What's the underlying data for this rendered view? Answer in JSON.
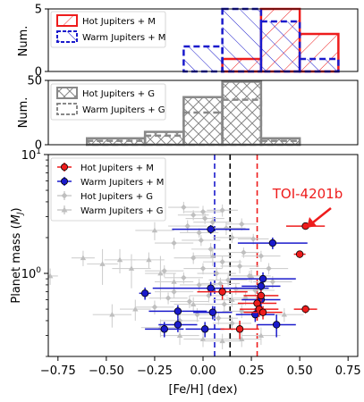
{
  "figure": {
    "xlabel": "[Fe/H] (dex)",
    "x_ticks": [
      "−0.75",
      "−0.50",
      "−0.25",
      "0.00",
      "0.25",
      "0.50",
      "0.75"
    ],
    "annotation": "TOI-4201b"
  },
  "colors": {
    "hot_m": "#ee1c1c",
    "warm_m": "#1a1acc",
    "g_hist": "#888888",
    "g_points": "#bfbfbf"
  },
  "chart_data": [
    {
      "type": "bar",
      "panel": "top histogram (M dwarf hosts)",
      "ylabel": "Num.",
      "ylim": [
        0,
        5
      ],
      "y_ticks": [
        "0",
        "5"
      ],
      "bin_edges": [
        -0.6,
        -0.3,
        -0.1,
        0.1,
        0.3,
        0.5,
        0.7
      ],
      "series": [
        {
          "name": "Hot Jupiters + M",
          "style": "solid red, hatched",
          "values": [
            0,
            0,
            0,
            1,
            5,
            3
          ]
        },
        {
          "name": "Warm Jupiters + M",
          "style": "dashed blue, hatched",
          "values": [
            0,
            0,
            2,
            5,
            4,
            1
          ]
        }
      ],
      "legend": "top-left"
    },
    {
      "type": "bar",
      "panel": "middle histogram (G dwarf hosts)",
      "ylabel": "Num.",
      "ylim": [
        0,
        50
      ],
      "y_ticks": [
        "0",
        "50"
      ],
      "bin_edges": [
        -0.6,
        -0.3,
        -0.1,
        0.1,
        0.3,
        0.5,
        0.7
      ],
      "series": [
        {
          "name": "Hot Jupiters + G",
          "style": "solid gray, cross-hatched",
          "values": [
            5,
            10,
            37,
            49,
            5,
            0
          ]
        },
        {
          "name": "Warm Jupiters + G",
          "style": "dashed gray",
          "values": [
            3,
            7,
            25,
            35,
            3,
            0
          ]
        }
      ],
      "legend": "top-left"
    },
    {
      "type": "scatter",
      "panel": "main scatter",
      "ylabel": "Planet mass (M_J)",
      "ylabel_parts": [
        "Planet mass (",
        "M",
        "J",
        ")"
      ],
      "xlim": [
        -0.8,
        0.8
      ],
      "ylim": [
        0.2,
        10
      ],
      "y_scale": "log",
      "y_ticks": [
        {
          "value": 1,
          "base": "10",
          "exp": "0"
        },
        {
          "value": 10,
          "base": "10",
          "exp": "1"
        }
      ],
      "vlines": [
        {
          "x": 0.06,
          "color": "blue",
          "style": "dashed"
        },
        {
          "x": 0.14,
          "color": "black",
          "style": "dashed"
        },
        {
          "x": 0.28,
          "color": "red",
          "style": "dashed"
        }
      ],
      "legend": "top-left",
      "series": [
        {
          "name": "Hot Jupiters + M",
          "marker": "circle",
          "points": [
            {
              "x": 0.53,
              "y": 2.5,
              "xerr": 0.1,
              "yerr_lo": 0.15,
              "yerr_hi": 0.15,
              "label": "TOI-4201b"
            },
            {
              "x": 0.5,
              "y": 1.45,
              "xerr": 0.03,
              "yerr_lo": 0.1,
              "yerr_hi": 0.1
            },
            {
              "x": 0.3,
              "y": 0.65,
              "xerr": 0.09,
              "yerr_lo": 0.07,
              "yerr_hi": 0.07
            },
            {
              "x": 0.28,
              "y": 0.56,
              "xerr": 0.1,
              "yerr_lo": 0.08,
              "yerr_hi": 0.08
            },
            {
              "x": 0.29,
              "y": 0.5,
              "xerr": 0.1,
              "yerr_lo": 0.07,
              "yerr_hi": 0.07
            },
            {
              "x": 0.31,
              "y": 0.47,
              "xerr": 0.1,
              "yerr_lo": 0.06,
              "yerr_hi": 0.06
            },
            {
              "x": 0.53,
              "y": 0.5,
              "xerr": 0.06,
              "yerr_lo": 0.04,
              "yerr_hi": 0.04
            },
            {
              "x": 0.1,
              "y": 0.7,
              "xerr": 0.13,
              "yerr_lo": 0.1,
              "yerr_hi": 0.1
            },
            {
              "x": 0.19,
              "y": 0.34,
              "xerr": 0.1,
              "yerr_lo": 0.06,
              "yerr_hi": 0.06
            }
          ]
        },
        {
          "name": "Warm Jupiters + M",
          "marker": "circle",
          "points": [
            {
              "x": 0.04,
              "y": 2.35,
              "xerr": 0.2,
              "yerr_lo": 0.2,
              "yerr_hi": 0.2
            },
            {
              "x": 0.36,
              "y": 1.8,
              "xerr": 0.18,
              "yerr_lo": 0.2,
              "yerr_hi": 0.2
            },
            {
              "x": -0.3,
              "y": 0.68,
              "xerr": 0.03,
              "yerr_lo": 0.08,
              "yerr_hi": 0.08
            },
            {
              "x": 0.04,
              "y": 0.75,
              "xerr": 0.3,
              "yerr_lo": 0.1,
              "yerr_hi": 0.1
            },
            {
              "x": 0.31,
              "y": 0.9,
              "xerr": 0.17,
              "yerr_lo": 0.12,
              "yerr_hi": 0.12
            },
            {
              "x": 0.3,
              "y": 0.78,
              "xerr": 0.1,
              "yerr_lo": 0.1,
              "yerr_hi": 0.1
            },
            {
              "x": 0.3,
              "y": 0.6,
              "xerr": 0.1,
              "yerr_lo": 0.08,
              "yerr_hi": 0.08
            },
            {
              "x": -0.13,
              "y": 0.48,
              "xerr": 0.15,
              "yerr_lo": 0.06,
              "yerr_hi": 0.06
            },
            {
              "x": 0.05,
              "y": 0.47,
              "xerr": 0.1,
              "yerr_lo": 0.06,
              "yerr_hi": 0.06
            },
            {
              "x": 0.27,
              "y": 0.45,
              "xerr": 0.1,
              "yerr_lo": 0.06,
              "yerr_hi": 0.06
            },
            {
              "x": -0.13,
              "y": 0.37,
              "xerr": 0.1,
              "yerr_lo": 0.05,
              "yerr_hi": 0.05
            },
            {
              "x": -0.2,
              "y": 0.34,
              "xerr": 0.1,
              "yerr_lo": 0.05,
              "yerr_hi": 0.05
            },
            {
              "x": 0.01,
              "y": 0.34,
              "xerr": 0.1,
              "yerr_lo": 0.05,
              "yerr_hi": 0.05
            },
            {
              "x": 0.38,
              "y": 0.37,
              "xerr": 0.1,
              "yerr_lo": 0.08,
              "yerr_hi": 0.08
            }
          ]
        },
        {
          "name": "Hot Jupiters + G",
          "marker": "diamond",
          "points": [
            {
              "x": -0.1,
              "y": 3.6,
              "xerr": 0.08,
              "yerr_lo": 0.4,
              "yerr_hi": 0.4
            },
            {
              "x": 0.0,
              "y": 3.3,
              "xerr": 0.1,
              "yerr_lo": 0.4,
              "yerr_hi": 0.4
            },
            {
              "x": 0.1,
              "y": 3.4,
              "xerr": 0.08,
              "yerr_lo": 0.4,
              "yerr_hi": 0.4
            },
            {
              "x": -0.05,
              "y": 3.1,
              "xerr": 0.08,
              "yerr_lo": 0.3,
              "yerr_hi": 0.3
            },
            {
              "x": 0.05,
              "y": 2.7,
              "xerr": 0.1,
              "yerr_lo": 0.3,
              "yerr_hi": 0.3
            },
            {
              "x": 0.12,
              "y": 2.4,
              "xerr": 0.1,
              "yerr_lo": 0.3,
              "yerr_hi": 0.3
            },
            {
              "x": 0.2,
              "y": 2.6,
              "xerr": 0.08,
              "yerr_lo": 0.3,
              "yerr_hi": 0.3
            },
            {
              "x": -0.02,
              "y": 2.2,
              "xerr": 0.1,
              "yerr_lo": 0.2,
              "yerr_hi": 0.2
            },
            {
              "x": 0.15,
              "y": 2.0,
              "xerr": 0.1,
              "yerr_lo": 0.2,
              "yerr_hi": 0.2
            },
            {
              "x": 0.26,
              "y": 1.95,
              "xerr": 0.08,
              "yerr_lo": 0.2,
              "yerr_hi": 0.2
            },
            {
              "x": -0.15,
              "y": 1.8,
              "xerr": 0.1,
              "yerr_lo": 0.2,
              "yerr_hi": 0.2
            },
            {
              "x": 0.04,
              "y": 1.6,
              "xerr": 0.1,
              "yerr_lo": 0.2,
              "yerr_hi": 0.2
            },
            {
              "x": 0.21,
              "y": 1.5,
              "xerr": 0.08,
              "yerr_lo": 0.15,
              "yerr_hi": 0.15
            },
            {
              "x": 0.3,
              "y": 1.4,
              "xerr": 0.1,
              "yerr_lo": 0.15,
              "yerr_hi": 0.15
            },
            {
              "x": -0.05,
              "y": 1.35,
              "xerr": 0.1,
              "yerr_lo": 0.15,
              "yerr_hi": 0.15
            },
            {
              "x": 0.1,
              "y": 1.25,
              "xerr": 0.1,
              "yerr_lo": 0.15,
              "yerr_hi": 0.15
            },
            {
              "x": 0.19,
              "y": 1.15,
              "xerr": 0.1,
              "yerr_lo": 0.15,
              "yerr_hi": 0.15
            },
            {
              "x": 0.0,
              "y": 1.1,
              "xerr": 0.1,
              "yerr_lo": 0.12,
              "yerr_hi": 0.12
            },
            {
              "x": -0.2,
              "y": 1.05,
              "xerr": 0.1,
              "yerr_lo": 0.12,
              "yerr_hi": 0.12
            },
            {
              "x": 0.07,
              "y": 1.0,
              "xerr": 0.1,
              "yerr_lo": 0.12,
              "yerr_hi": 0.12
            },
            {
              "x": 0.24,
              "y": 0.95,
              "xerr": 0.1,
              "yerr_lo": 0.1,
              "yerr_hi": 0.1
            },
            {
              "x": -0.1,
              "y": 0.92,
              "xerr": 0.1,
              "yerr_lo": 0.1,
              "yerr_hi": 0.1
            },
            {
              "x": 0.13,
              "y": 0.88,
              "xerr": 0.1,
              "yerr_lo": 0.1,
              "yerr_hi": 0.1
            },
            {
              "x": 0.36,
              "y": 0.85,
              "xerr": 0.1,
              "yerr_lo": 0.1,
              "yerr_hi": 0.1
            },
            {
              "x": -0.02,
              "y": 0.8,
              "xerr": 0.1,
              "yerr_lo": 0.1,
              "yerr_hi": 0.1
            },
            {
              "x": 0.17,
              "y": 0.74,
              "xerr": 0.1,
              "yerr_lo": 0.08,
              "yerr_hi": 0.08
            },
            {
              "x": -0.15,
              "y": 0.7,
              "xerr": 0.1,
              "yerr_lo": 0.08,
              "yerr_hi": 0.08
            },
            {
              "x": 0.03,
              "y": 0.65,
              "xerr": 0.1,
              "yerr_lo": 0.08,
              "yerr_hi": 0.08
            },
            {
              "x": 0.22,
              "y": 0.62,
              "xerr": 0.1,
              "yerr_lo": 0.08,
              "yerr_hi": 0.08
            },
            {
              "x": -0.07,
              "y": 0.58,
              "xerr": 0.1,
              "yerr_lo": 0.07,
              "yerr_hi": 0.07
            },
            {
              "x": 0.11,
              "y": 0.55,
              "xerr": 0.1,
              "yerr_lo": 0.07,
              "yerr_hi": 0.07
            },
            {
              "x": -0.25,
              "y": 0.52,
              "xerr": 0.1,
              "yerr_lo": 0.07,
              "yerr_hi": 0.07
            },
            {
              "x": 0.2,
              "y": 0.48,
              "xerr": 0.1,
              "yerr_lo": 0.06,
              "yerr_hi": 0.06
            },
            {
              "x": -0.03,
              "y": 0.45,
              "xerr": 0.1,
              "yerr_lo": 0.06,
              "yerr_hi": 0.06
            },
            {
              "x": 0.08,
              "y": 0.42,
              "xerr": 0.1,
              "yerr_lo": 0.05,
              "yerr_hi": 0.05
            },
            {
              "x": -0.12,
              "y": 0.4,
              "xerr": 0.1,
              "yerr_lo": 0.05,
              "yerr_hi": 0.05
            },
            {
              "x": 0.15,
              "y": 0.38,
              "xerr": 0.1,
              "yerr_lo": 0.05,
              "yerr_hi": 0.05
            },
            {
              "x": -0.18,
              "y": 0.62,
              "xerr": 0.1,
              "yerr_lo": 0.07,
              "yerr_hi": 0.07
            },
            {
              "x": 0.34,
              "y": 1.1,
              "xerr": 0.1,
              "yerr_lo": 0.12,
              "yerr_hi": 0.12
            },
            {
              "x": 0.01,
              "y": 2.9,
              "xerr": 0.1,
              "yerr_lo": 0.3,
              "yerr_hi": 0.3
            },
            {
              "x": -0.08,
              "y": 2.5,
              "xerr": 0.1,
              "yerr_lo": 0.3,
              "yerr_hi": 0.3
            },
            {
              "x": 0.27,
              "y": 0.72,
              "xerr": 0.1,
              "yerr_lo": 0.08,
              "yerr_hi": 0.08
            },
            {
              "x": -0.01,
              "y": 1.9,
              "xerr": 0.1,
              "yerr_lo": 0.2,
              "yerr_hi": 0.2
            },
            {
              "x": 0.09,
              "y": 0.82,
              "xerr": 0.1,
              "yerr_lo": 0.1,
              "yerr_hi": 0.1
            }
          ]
        },
        {
          "name": "Warm Jupiters + G",
          "marker": "triangle",
          "points": [
            {
              "x": -0.79,
              "y": 0.95,
              "xerr": 0.04,
              "yerr_lo": 0.15,
              "yerr_hi": 0.15
            },
            {
              "x": -0.52,
              "y": 1.2,
              "xerr": 0.08,
              "yerr_lo": 0.4,
              "yerr_hi": 0.4
            },
            {
              "x": -0.43,
              "y": 1.3,
              "xerr": 0.08,
              "yerr_lo": 0.3,
              "yerr_hi": 0.3
            },
            {
              "x": -0.37,
              "y": 1.1,
              "xerr": 0.1,
              "yerr_lo": 0.35,
              "yerr_hi": 0.35
            },
            {
              "x": -0.28,
              "y": 1.3,
              "xerr": 0.08,
              "yerr_lo": 0.2,
              "yerr_hi": 0.2
            },
            {
              "x": -0.22,
              "y": 1.0,
              "xerr": 0.08,
              "yerr_lo": 0.4,
              "yerr_hi": 0.4
            },
            {
              "x": -0.35,
              "y": 0.5,
              "xerr": 0.08,
              "yerr_lo": 0.1,
              "yerr_hi": 0.1
            },
            {
              "x": -0.47,
              "y": 0.45,
              "xerr": 0.1,
              "yerr_lo": 0.1,
              "yerr_hi": 0.1
            },
            {
              "x": -0.22,
              "y": 0.35,
              "xerr": 0.1,
              "yerr_lo": 0.06,
              "yerr_hi": 0.06
            },
            {
              "x": -0.12,
              "y": 0.3,
              "xerr": 0.1,
              "yerr_lo": 0.05,
              "yerr_hi": 0.05
            },
            {
              "x": 0.0,
              "y": 0.28,
              "xerr": 0.1,
              "yerr_lo": 0.04,
              "yerr_hi": 0.04
            },
            {
              "x": 0.1,
              "y": 0.27,
              "xerr": 0.1,
              "yerr_lo": 0.04,
              "yerr_hi": 0.04
            },
            {
              "x": 0.2,
              "y": 0.28,
              "xerr": 0.1,
              "yerr_lo": 0.04,
              "yerr_hi": 0.04
            },
            {
              "x": 0.3,
              "y": 0.3,
              "xerr": 0.1,
              "yerr_lo": 0.05,
              "yerr_hi": 0.05
            },
            {
              "x": -0.05,
              "y": 0.55,
              "xerr": 0.1,
              "yerr_lo": 0.08,
              "yerr_hi": 0.08
            },
            {
              "x": 0.15,
              "y": 0.6,
              "xerr": 0.1,
              "yerr_lo": 0.08,
              "yerr_hi": 0.08
            },
            {
              "x": -0.15,
              "y": 0.85,
              "xerr": 0.1,
              "yerr_lo": 0.15,
              "yerr_hi": 0.15
            },
            {
              "x": 0.05,
              "y": 1.4,
              "xerr": 0.1,
              "yerr_lo": 0.25,
              "yerr_hi": 0.25
            },
            {
              "x": 0.25,
              "y": 0.95,
              "xerr": 0.1,
              "yerr_lo": 0.12,
              "yerr_hi": 0.12
            },
            {
              "x": -0.25,
              "y": 2.3,
              "xerr": 0.1,
              "yerr_lo": 0.4,
              "yerr_hi": 0.4
            },
            {
              "x": 0.42,
              "y": 0.45,
              "xerr": 0.1,
              "yerr_lo": 0.06,
              "yerr_hi": 0.06
            },
            {
              "x": -0.62,
              "y": 1.35,
              "xerr": 0.06,
              "yerr_lo": 0.2,
              "yerr_hi": 0.2
            }
          ]
        }
      ]
    }
  ]
}
